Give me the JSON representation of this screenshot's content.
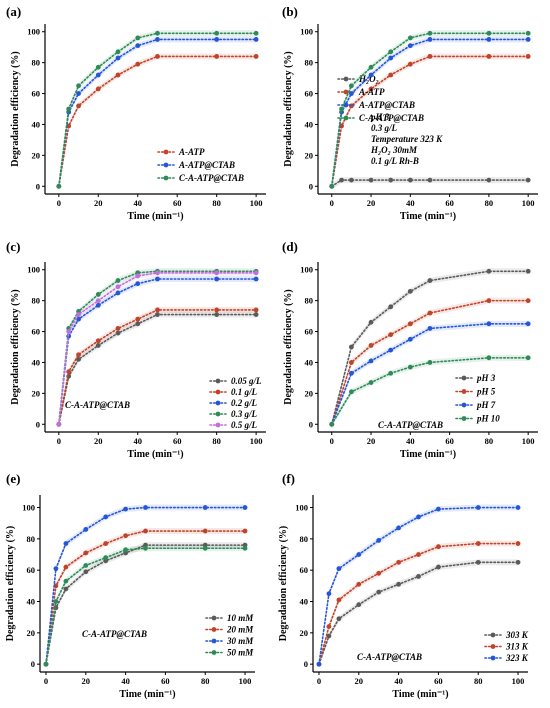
{
  "colors": {
    "gray": "#5a5a5a",
    "red": "#c0432a",
    "blue": "#2456d8",
    "green": "#2e8b57",
    "purple": "#c070d8"
  },
  "chart_data": [
    {
      "panel": "(a)",
      "type": "line",
      "xlabel": "Time (min⁻¹)",
      "ylabel": "Degradation efficiency (%)",
      "xlim": [
        -7,
        105
      ],
      "ylim": [
        -5,
        105
      ],
      "xticks": [
        0,
        20,
        40,
        60,
        80,
        100
      ],
      "yticks": [
        0,
        20,
        40,
        60,
        80,
        100
      ],
      "legend_position": "bottom-right",
      "notes": [],
      "series": [
        {
          "name": "A-ATP",
          "color": "red",
          "x": [
            0,
            5,
            10,
            20,
            30,
            40,
            50,
            80,
            100
          ],
          "y": [
            0,
            39,
            52,
            63,
            72,
            79,
            84,
            84,
            84
          ]
        },
        {
          "name": "A-ATP@CTAB",
          "color": "blue",
          "x": [
            0,
            5,
            10,
            20,
            30,
            40,
            50,
            80,
            100
          ],
          "y": [
            0,
            48,
            60,
            72,
            83,
            91,
            95,
            95,
            95
          ]
        },
        {
          "name": "C-A-ATP@CTAB",
          "color": "green",
          "x": [
            0,
            5,
            10,
            20,
            30,
            40,
            50,
            80,
            100
          ],
          "y": [
            0,
            50,
            65,
            77,
            87,
            96,
            99,
            99,
            99
          ]
        }
      ]
    },
    {
      "panel": "(b)",
      "type": "line",
      "xlabel": "Time (min⁻¹)",
      "ylabel": "Degradation efficiency (%)",
      "xlim": [
        -7,
        105
      ],
      "ylim": [
        -5,
        105
      ],
      "xticks": [
        0,
        20,
        40,
        60,
        80,
        100
      ],
      "yticks": [
        0,
        20,
        40,
        60,
        80,
        100
      ],
      "legend_position": "center-right",
      "notes": [
        "pH 3",
        "0.3 g/L",
        "Temperature 323 K",
        "H₂O₂ 30mM",
        "0.1 g/L Rh-B"
      ],
      "series": [
        {
          "name": "H₂O₂",
          "color": "gray",
          "x": [
            0,
            5,
            10,
            20,
            30,
            40,
            50,
            80,
            100
          ],
          "y": [
            0,
            4,
            4,
            4,
            4,
            4,
            4,
            4,
            4
          ]
        },
        {
          "name": "A-ATP",
          "color": "red",
          "x": [
            0,
            5,
            10,
            20,
            30,
            40,
            50,
            80,
            100
          ],
          "y": [
            0,
            39,
            52,
            63,
            72,
            79,
            84,
            84,
            84
          ]
        },
        {
          "name": "A-ATP@CTAB",
          "color": "blue",
          "x": [
            0,
            5,
            10,
            20,
            30,
            40,
            50,
            80,
            100
          ],
          "y": [
            0,
            48,
            60,
            72,
            83,
            91,
            95,
            95,
            95
          ]
        },
        {
          "name": "C-A-ATP@CTAB",
          "color": "green",
          "x": [
            0,
            5,
            10,
            20,
            30,
            40,
            50,
            80,
            100
          ],
          "y": [
            0,
            50,
            65,
            77,
            87,
            96,
            99,
            99,
            99
          ]
        }
      ]
    },
    {
      "panel": "(c)",
      "type": "line",
      "xlabel": "Time (min⁻¹)",
      "ylabel": "Degradation efficiency (%)",
      "xlim": [
        -7,
        105
      ],
      "ylim": [
        -5,
        105
      ],
      "xticks": [
        0,
        20,
        40,
        60,
        80,
        100
      ],
      "yticks": [
        0,
        20,
        40,
        60,
        80,
        100
      ],
      "legend_position": "bottom-right",
      "notes": [
        "C-A-ATP@CTAB"
      ],
      "series": [
        {
          "name": "0.05 g/L",
          "color": "gray",
          "x": [
            0,
            5,
            10,
            20,
            30,
            40,
            50,
            80,
            100
          ],
          "y": [
            0,
            31,
            42,
            51,
            59,
            65,
            71,
            71,
            71
          ]
        },
        {
          "name": "0.1 g/L",
          "color": "red",
          "x": [
            0,
            5,
            10,
            20,
            30,
            40,
            50,
            80,
            100
          ],
          "y": [
            0,
            34,
            45,
            54,
            62,
            68,
            74,
            74,
            74
          ]
        },
        {
          "name": "0.2 g/L",
          "color": "blue",
          "x": [
            0,
            5,
            10,
            20,
            30,
            40,
            50,
            80,
            100
          ],
          "y": [
            0,
            57,
            68,
            77,
            85,
            91,
            94,
            94,
            94
          ]
        },
        {
          "name": "0.3 g/L",
          "color": "green",
          "x": [
            0,
            5,
            10,
            20,
            30,
            40,
            50,
            80,
            100
          ],
          "y": [
            0,
            62,
            73,
            84,
            93,
            98,
            99,
            99,
            99
          ]
        },
        {
          "name": "0.5 g/L",
          "color": "purple",
          "x": [
            0,
            5,
            10,
            20,
            30,
            40,
            50,
            80,
            100
          ],
          "y": [
            0,
            60,
            71,
            80,
            89,
            96,
            98,
            98,
            98
          ]
        }
      ]
    },
    {
      "panel": "(d)",
      "type": "line",
      "xlabel": "Time (min⁻¹)",
      "ylabel": "Degradation efficiency (%)",
      "xlim": [
        -7,
        105
      ],
      "ylim": [
        -5,
        105
      ],
      "xticks": [
        0,
        20,
        40,
        60,
        80,
        100
      ],
      "yticks": [
        0,
        20,
        40,
        60,
        80,
        100
      ],
      "legend_position": "bottom-right",
      "notes": [
        "C-A-ATP@CTAB"
      ],
      "series": [
        {
          "name": "pH 3",
          "color": "gray",
          "x": [
            0,
            10,
            20,
            30,
            40,
            50,
            80,
            100
          ],
          "y": [
            0,
            50,
            66,
            76,
            86,
            93,
            99,
            99
          ]
        },
        {
          "name": "pH 5",
          "color": "red",
          "x": [
            0,
            10,
            20,
            30,
            40,
            50,
            80,
            100
          ],
          "y": [
            0,
            40,
            51,
            58,
            65,
            72,
            80,
            80
          ]
        },
        {
          "name": "pH 7",
          "color": "blue",
          "x": [
            0,
            10,
            20,
            30,
            40,
            50,
            80,
            100
          ],
          "y": [
            0,
            33,
            41,
            48,
            55,
            62,
            65,
            65
          ]
        },
        {
          "name": "pH 10",
          "color": "green",
          "x": [
            0,
            10,
            20,
            30,
            40,
            50,
            80,
            100
          ],
          "y": [
            0,
            21,
            27,
            33,
            37,
            40,
            43,
            43
          ]
        }
      ]
    },
    {
      "panel": "(e)",
      "type": "line",
      "xlabel": "Time (min⁻¹)",
      "ylabel": "Degradation efficiency (%)",
      "xlim": [
        -3,
        105
      ],
      "ylim": [
        -5,
        108
      ],
      "xticks": [
        0,
        20,
        40,
        60,
        80,
        100
      ],
      "yticks": [
        0,
        20,
        40,
        60,
        80,
        100
      ],
      "legend_position": "bottom-right",
      "notes": [
        "C-A-ATP@CTAB"
      ],
      "series": [
        {
          "name": "10 mM",
          "color": "gray",
          "x": [
            0,
            5,
            10,
            20,
            30,
            40,
            50,
            80,
            100
          ],
          "y": [
            0,
            36,
            48,
            59,
            66,
            71,
            76,
            76,
            76
          ]
        },
        {
          "name": "20 mM",
          "color": "red",
          "x": [
            0,
            5,
            10,
            20,
            30,
            40,
            50,
            80,
            100
          ],
          "y": [
            0,
            50,
            62,
            71,
            77,
            82,
            85,
            85,
            85
          ]
        },
        {
          "name": "30 mM",
          "color": "blue",
          "x": [
            0,
            5,
            10,
            20,
            30,
            40,
            50,
            80,
            100
          ],
          "y": [
            0,
            61,
            77,
            86,
            94,
            99,
            100,
            100,
            100
          ]
        },
        {
          "name": "50 mM",
          "color": "green",
          "x": [
            0,
            5,
            10,
            20,
            30,
            40,
            50,
            80,
            100
          ],
          "y": [
            0,
            40,
            53,
            63,
            68,
            73,
            74,
            74,
            74
          ]
        }
      ]
    },
    {
      "panel": "(f)",
      "type": "line",
      "xlabel": "Time (min⁻¹)",
      "ylabel": "Degradation efficiency (%)",
      "xlim": [
        -3,
        105
      ],
      "ylim": [
        -5,
        108
      ],
      "xticks": [
        0,
        20,
        40,
        60,
        80,
        100
      ],
      "yticks": [
        0,
        20,
        40,
        60,
        80,
        100
      ],
      "legend_position": "bottom-right",
      "notes": [
        "C-A-ATP@CTAB"
      ],
      "series": [
        {
          "name": "303 K",
          "color": "gray",
          "x": [
            0,
            5,
            10,
            20,
            30,
            40,
            50,
            60,
            80,
            100
          ],
          "y": [
            0,
            18,
            29,
            38,
            46,
            51,
            56,
            62,
            65,
            65
          ]
        },
        {
          "name": "313 K",
          "color": "red",
          "x": [
            0,
            5,
            10,
            20,
            30,
            40,
            50,
            60,
            80,
            100
          ],
          "y": [
            0,
            24,
            41,
            51,
            58,
            65,
            70,
            75,
            77,
            77
          ]
        },
        {
          "name": "323 K",
          "color": "blue",
          "x": [
            0,
            5,
            10,
            20,
            30,
            40,
            50,
            60,
            80,
            100
          ],
          "y": [
            0,
            45,
            61,
            70,
            79,
            87,
            94,
            99,
            100,
            100
          ]
        }
      ]
    }
  ]
}
